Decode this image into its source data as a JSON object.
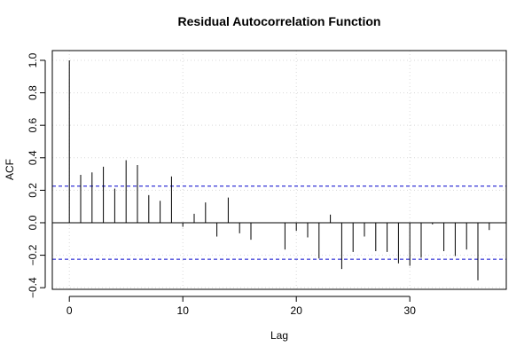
{
  "chart_data": {
    "type": "bar",
    "title": "Residual Autocorrelation Function",
    "xlabel": "Lag",
    "ylabel": "ACF",
    "xlim": [
      -1.5,
      38.5
    ],
    "ylim": [
      -0.41,
      1.06
    ],
    "xticks": [
      0,
      10,
      20,
      30
    ],
    "yticks": [
      -0.4,
      -0.2,
      0.0,
      0.2,
      0.4,
      0.6,
      0.8,
      1.0
    ],
    "xtick_labels": [
      "0",
      "10",
      "20",
      "30"
    ],
    "ytick_labels": [
      "−0.4",
      "−0.2",
      "0.0",
      "0.2",
      "0.4",
      "0.6",
      "0.8",
      "1.0"
    ],
    "grid": true,
    "confidence_band": [
      0.225,
      -0.225
    ],
    "series_color": "#000000",
    "band_color": "#0000cc",
    "lags": [
      0,
      1,
      2,
      3,
      4,
      5,
      6,
      7,
      8,
      9,
      10,
      11,
      12,
      13,
      14,
      15,
      16,
      17,
      18,
      19,
      20,
      21,
      22,
      23,
      24,
      25,
      26,
      27,
      28,
      29,
      30,
      31,
      32,
      33,
      34,
      35,
      36,
      37
    ],
    "values": [
      1.0,
      0.295,
      0.31,
      0.345,
      0.21,
      0.385,
      0.355,
      0.17,
      0.135,
      0.285,
      -0.025,
      0.055,
      0.125,
      -0.085,
      0.155,
      -0.065,
      -0.105,
      0.0,
      0.0,
      -0.165,
      -0.05,
      -0.09,
      -0.22,
      0.05,
      -0.285,
      -0.18,
      -0.085,
      -0.175,
      -0.18,
      -0.25,
      -0.265,
      -0.215,
      -0.01,
      -0.175,
      -0.205,
      -0.165,
      -0.355,
      -0.045
    ]
  }
}
